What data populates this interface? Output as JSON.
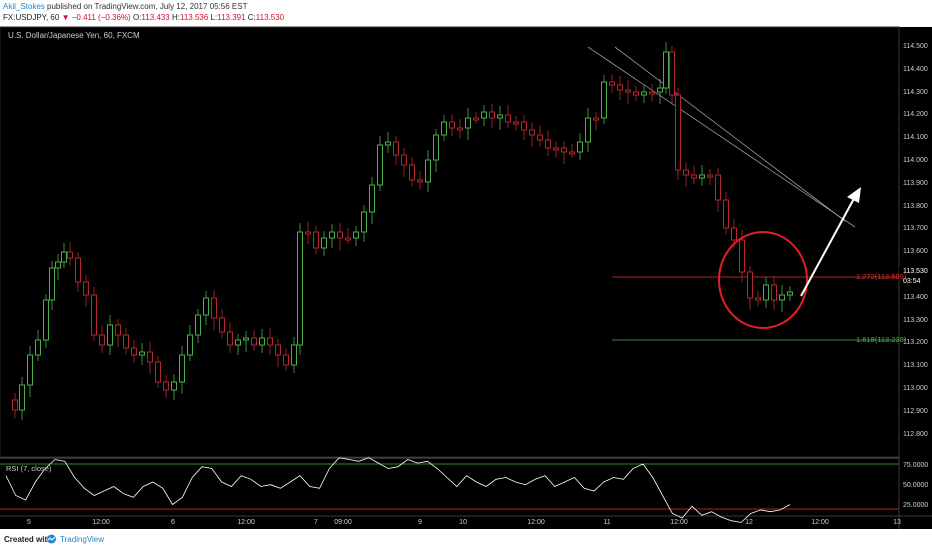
{
  "header": {
    "author": "Akil_Stokes",
    "published": "published on TradingView.com, July 12, 2017 05:56 EST",
    "symbol_line": "FX:USDJPY, 60",
    "change": "−0.411 (−0.36%)",
    "ohlc": {
      "o_label": "O:",
      "o": "113.433",
      "h_label": "H:",
      "h": "113.536",
      "l_label": "L:",
      "l": "113.391",
      "c_label": "C:",
      "c": "113.530"
    }
  },
  "chart": {
    "title": "U.S. Dollar/Japanese Yen, 60, FXCM",
    "price_axis": [
      "114.500",
      "114.400",
      "114.300",
      "114.200",
      "114.100",
      "114.000",
      "113.900",
      "113.800",
      "113.700",
      "113.600",
      "113.500",
      "113.400",
      "113.300",
      "113.200",
      "113.100",
      "113.000",
      "112.900",
      "112.800"
    ],
    "last_price": "113.530",
    "countdown": "03:54",
    "fib_red": "1.272(113.509)",
    "fib_green": "1.618(113.238)",
    "colors": {
      "up": "#49b04a",
      "down": "#b3282d",
      "fib_red": "#e0302e",
      "fib_green": "#4caf50",
      "circle": "#e61e25",
      "arrow": "#ffffff"
    }
  },
  "rsi": {
    "title": "RSI (7, close)",
    "axis": [
      "75.0000",
      "50.0000",
      "25.0000"
    ],
    "upper_level": 75,
    "lower_level": 25
  },
  "time_axis": [
    "5",
    "12:00",
    "6",
    "12:00",
    "7",
    "09:00",
    "9",
    "10",
    "12:00",
    "11",
    "12:00",
    "12",
    "12:00",
    "13"
  ],
  "footer": {
    "created_with": "Created with",
    "brand": "TradingView"
  }
}
